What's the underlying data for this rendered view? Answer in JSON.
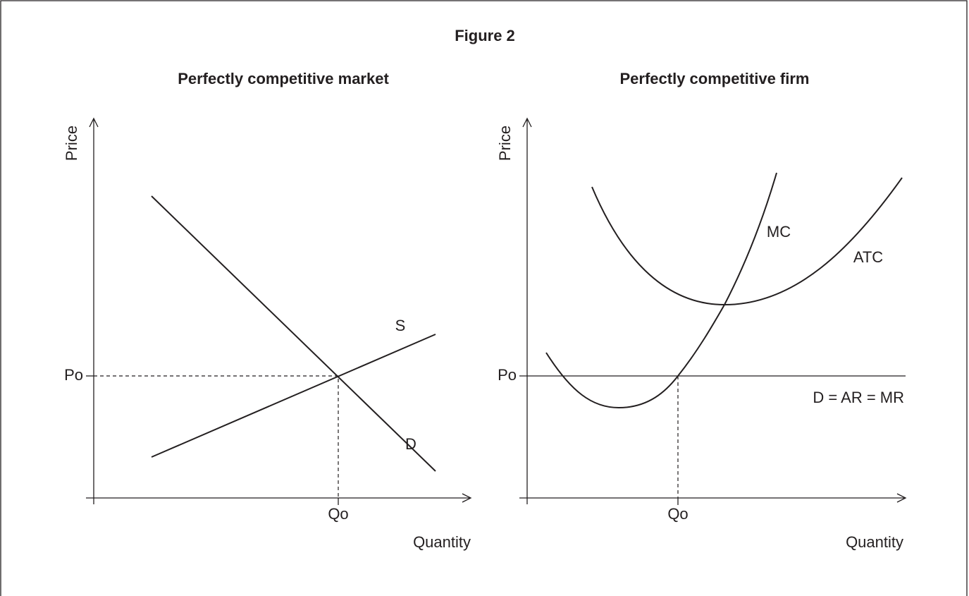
{
  "title": "Figure 2",
  "panels": [
    {
      "title": "Perfectly competitive market",
      "y_label": "Price",
      "x_label": "Quantity",
      "price_label": "Po",
      "quantity_label": "Qo",
      "curves": [
        "S",
        "D"
      ]
    },
    {
      "title": "Perfectly competitive firm",
      "y_label": "Price",
      "x_label": "Quantity",
      "price_label": "Po",
      "quantity_label": "Qo",
      "curves": [
        "MC",
        "ATC",
        "D = AR = MR"
      ]
    }
  ]
}
